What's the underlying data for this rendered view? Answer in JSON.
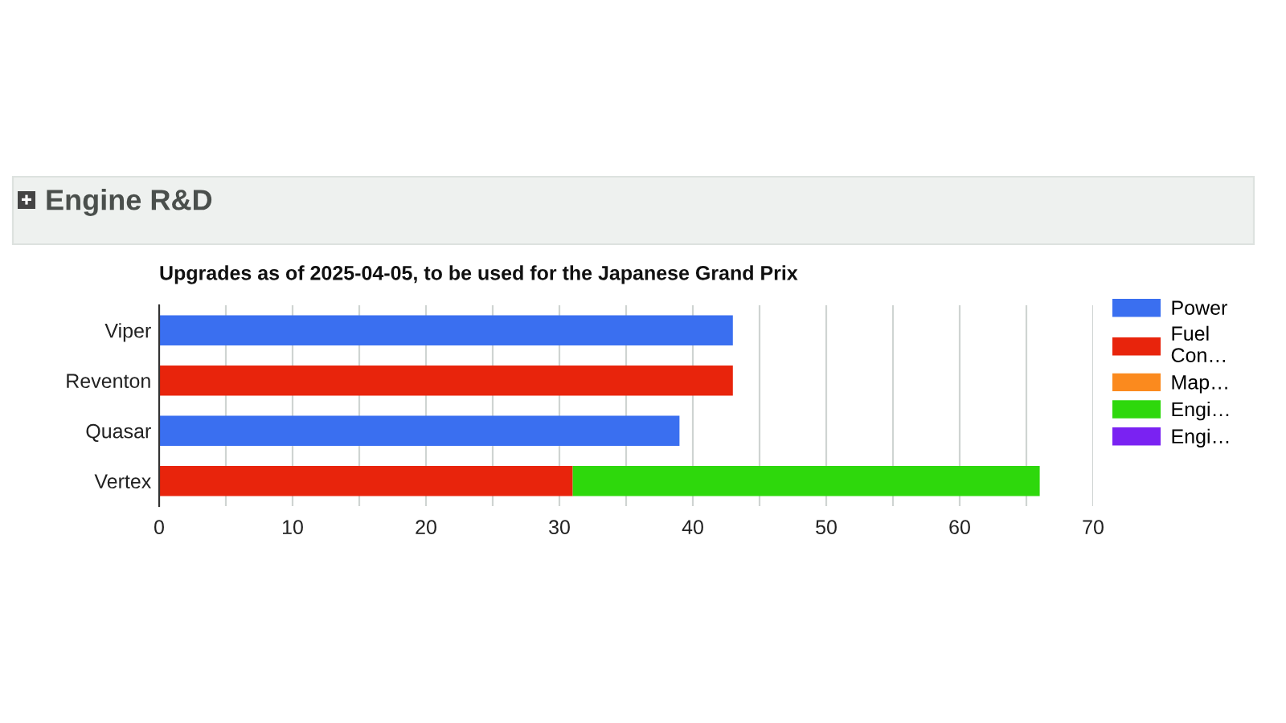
{
  "chart_data": {
    "type": "bar",
    "orientation": "horizontal",
    "stacked": true,
    "title": "Engine R&D",
    "subtitle": "Upgrades as of 2025-04-05, to be used for the Japanese Grand Prix",
    "categories": [
      "Viper",
      "Reventon",
      "Quasar",
      "Vertex"
    ],
    "series": [
      {
        "name": "Power",
        "color": "#3a6ff0",
        "values": [
          43,
          null,
          39,
          null
        ]
      },
      {
        "name": "Fuel Con…",
        "color": "#e8240c",
        "values": [
          null,
          43,
          null,
          31
        ]
      },
      {
        "name": "Map…",
        "color": "#fb8a1e",
        "values": [
          null,
          null,
          null,
          null
        ]
      },
      {
        "name": "Engi…",
        "color": "#2ed80c",
        "values": [
          null,
          null,
          null,
          35
        ]
      },
      {
        "name": "Engi…",
        "color": "#7a22f2",
        "values": [
          null,
          null,
          null,
          null
        ]
      }
    ],
    "xlim": [
      0,
      70
    ],
    "xticks": [
      0,
      {
        "value": 5,
        "label": null
      },
      10,
      {
        "value": 15,
        "label": null
      },
      20,
      {
        "value": 25,
        "label": null
      },
      30,
      {
        "value": 35,
        "label": null
      },
      40,
      {
        "value": 45,
        "label": null
      },
      50,
      {
        "value": 55,
        "label": null
      },
      60,
      {
        "value": 65,
        "label": null
      },
      70
    ],
    "grid": "x",
    "legend": "right"
  }
}
